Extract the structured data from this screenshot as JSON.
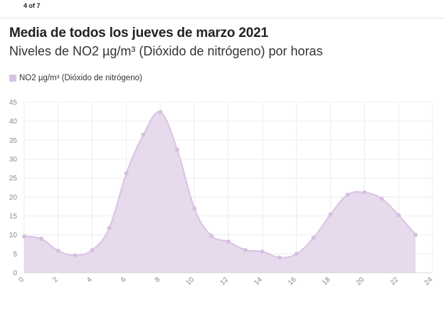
{
  "pager": "4 of 7",
  "chart_data": {
    "type": "area",
    "title": "Media de todos los jueves de marzo 2021",
    "subtitle": "Niveles de NO2 µg/m³ (Dióxido de nitrógeno) por horas",
    "series": [
      {
        "name": "NO2 µg/m³ (Dióxido de nitrógeno)",
        "x": [
          0,
          1,
          2,
          3,
          4,
          5,
          6,
          7,
          8,
          9,
          10,
          11,
          12,
          13,
          14,
          15,
          16,
          17,
          18,
          19,
          20,
          21,
          22,
          23
        ],
        "values": [
          9.6,
          9.0,
          5.8,
          4.6,
          6.0,
          11.8,
          26.2,
          36.4,
          42.4,
          32.4,
          17.0,
          9.8,
          8.2,
          6.0,
          5.6,
          4.0,
          5.0,
          9.2,
          15.4,
          20.6,
          21.2,
          19.6,
          15.2,
          10.0
        ]
      }
    ],
    "xlabel": "",
    "ylabel": "",
    "xlim": [
      0,
      24
    ],
    "ylim": [
      0,
      45
    ],
    "xticks": [
      "0",
      "2",
      "4",
      "6",
      "8",
      "10",
      "12",
      "14",
      "16",
      "18",
      "20",
      "22",
      "24"
    ],
    "yticks": [
      "0",
      "5",
      "10",
      "15",
      "20",
      "25",
      "30",
      "35",
      "40",
      "45"
    ],
    "grid": true,
    "legend_position": "top-left",
    "colors": {
      "fill": "#e6d8ec",
      "line": "#d9c3e3",
      "point": "#d7bfe1",
      "grid": "#ececec",
      "axis_text": "#888888"
    }
  }
}
